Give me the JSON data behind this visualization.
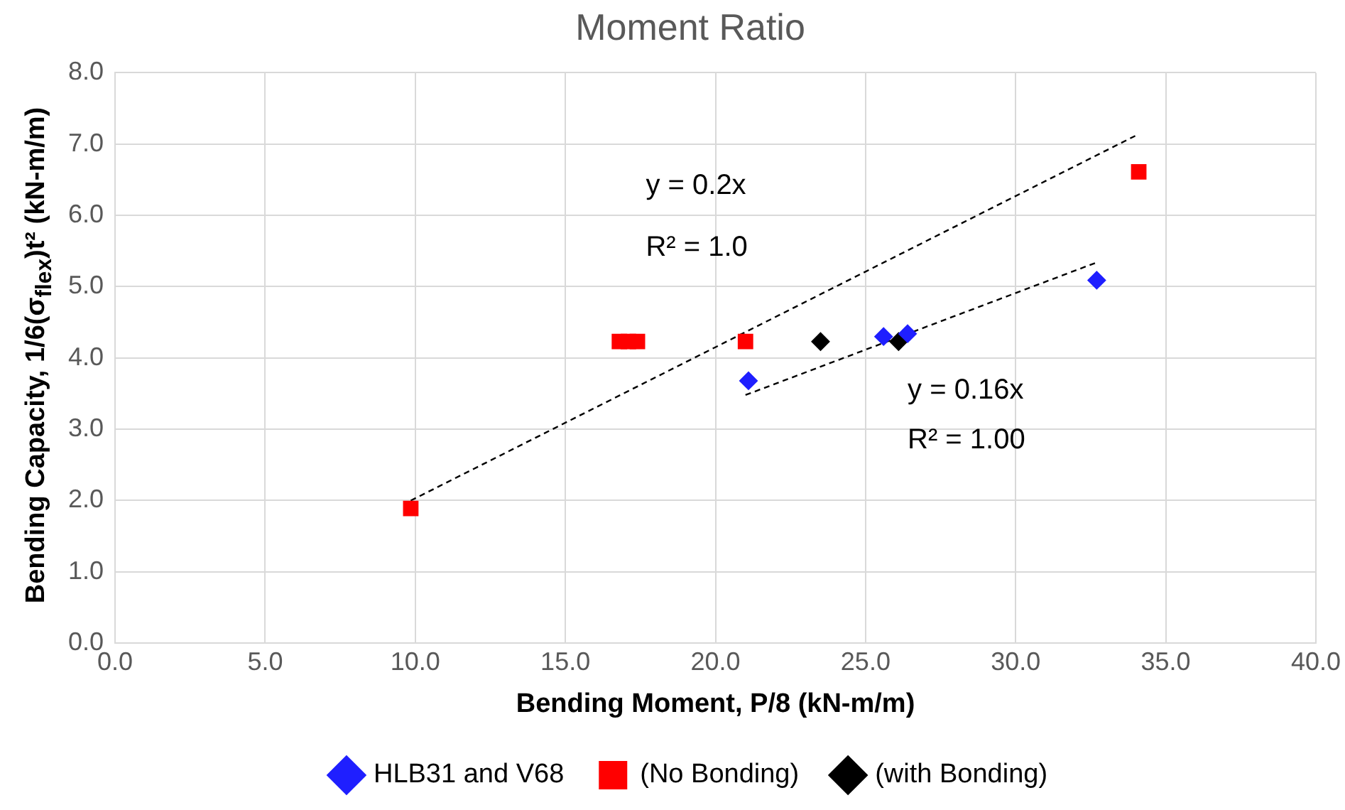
{
  "chart_data": {
    "type": "scatter",
    "title": "Moment Ratio",
    "xlabel": "Bending Moment, P/8 (kN-m/m)",
    "ylabel": "Bending Capacity, 1/6(σ$_{flex}$)t² (kN-m/m)",
    "xlim": [
      0,
      40
    ],
    "xticks": [
      {
        "value": 0,
        "label": "0.0"
      },
      {
        "value": 5,
        "label": "5.0"
      },
      {
        "value": 10,
        "label": "10.0"
      },
      {
        "value": 15,
        "label": "15.0"
      },
      {
        "value": 20,
        "label": "20.0"
      },
      {
        "value": 25,
        "label": "25.0"
      },
      {
        "value": 30,
        "label": "30.0"
      },
      {
        "value": 35,
        "label": "35.0"
      },
      {
        "value": 40,
        "label": "40.0"
      }
    ],
    "ylim": [
      0,
      8
    ],
    "yticks": [
      {
        "value": 0,
        "label": "0.0"
      },
      {
        "value": 1,
        "label": "1.0"
      },
      {
        "value": 2,
        "label": "2.0"
      },
      {
        "value": 3,
        "label": "3.0"
      },
      {
        "value": 4,
        "label": "4.0"
      },
      {
        "value": 5,
        "label": "5.0"
      },
      {
        "value": 6,
        "label": "6.0"
      },
      {
        "value": 7,
        "label": "7.0"
      },
      {
        "value": 8,
        "label": "8.0"
      }
    ],
    "grid": true,
    "legend": "bottom",
    "series": [
      {
        "name": "HLB31 and V68",
        "color": "#1f1fff",
        "marker": "diamond",
        "x": [
          21.1,
          25.6,
          26.4,
          32.7
        ],
        "values": [
          3.68,
          4.3,
          4.34,
          5.09
        ]
      },
      {
        "name": "(No Bonding)",
        "color": "#ff0000",
        "marker": "square",
        "x": [
          9.85,
          16.8,
          17.1,
          17.4,
          21.0,
          34.1
        ],
        "values": [
          1.89,
          4.23,
          4.23,
          4.23,
          4.23,
          6.61
        ]
      },
      {
        "name": "(with Bonding)",
        "color": "#000000",
        "marker": "diamond",
        "x": [
          23.5,
          26.1
        ],
        "values": [
          4.23,
          4.23
        ]
      },
      {
        "type": "line",
        "color": "#000000",
        "marker": "none",
        "line_style": "dashed",
        "x": [
          9.85,
          34.1
        ],
        "values": [
          2.0,
          7.14
        ]
      },
      {
        "type": "line",
        "color": "#000000",
        "marker": "none",
        "line_style": "dashed",
        "x": [
          21.0,
          32.7
        ],
        "values": [
          3.48,
          5.34
        ]
      }
    ],
    "annotations": [
      "y = 0.2x",
      "R² = 1.0",
      "y = 0.16x",
      "R² = 1.00"
    ]
  }
}
